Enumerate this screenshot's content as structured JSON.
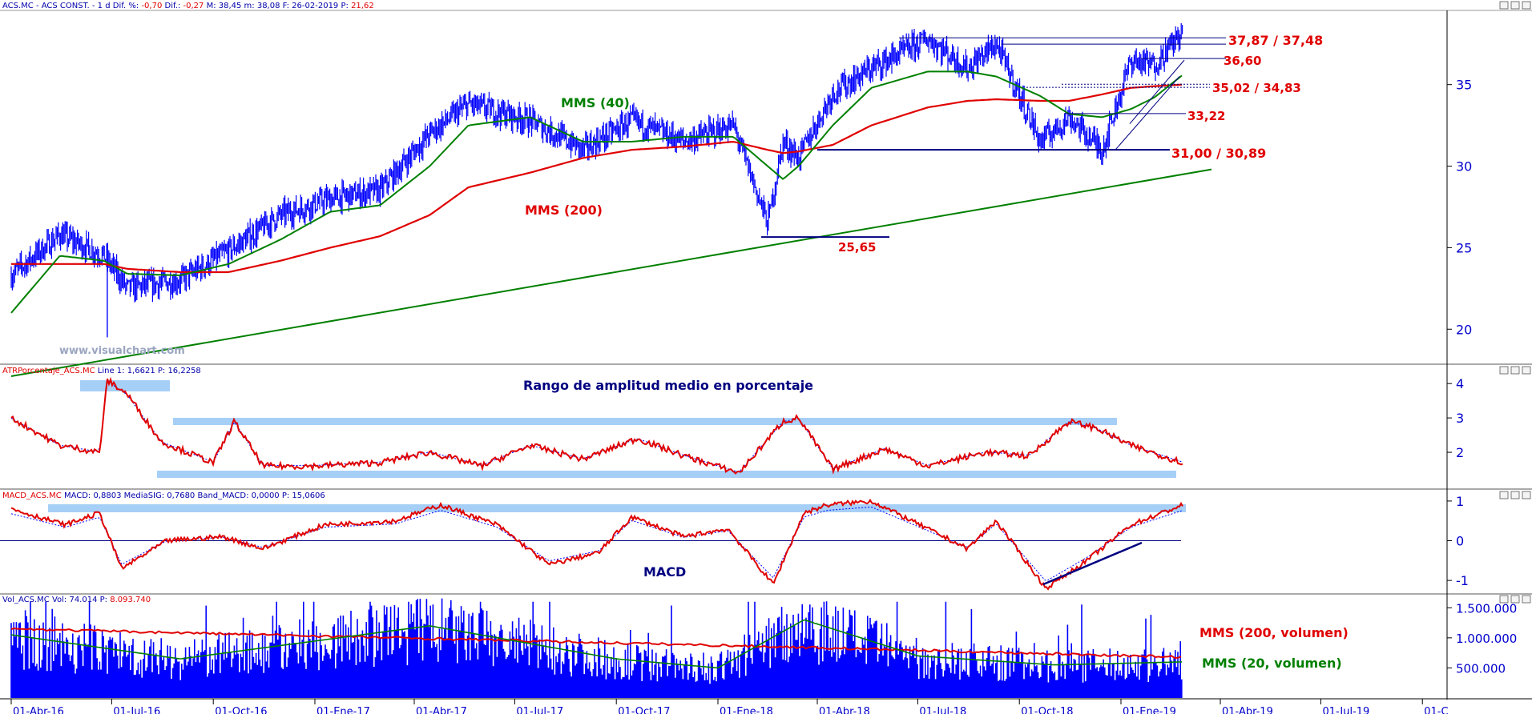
{
  "header": {
    "price": {
      "symbol": "ACS.MC - ACS CONST. -",
      "period": "1 d",
      "dif_pct_label": "Dif. %:",
      "dif_pct": "-0,70",
      "dif_label": "Dif.:",
      "dif": "-0,27",
      "max": "M: 38,45",
      "min": "m: 38,08",
      "date": "F: 26-02-2019",
      "p_label": "P:",
      "p": "21,62"
    },
    "atr": {
      "name": "ATRPorcentaje_ACS.MC",
      "line_label": "Line 1:",
      "line": "1,6621",
      "p_label": "P:",
      "p": "16,2258"
    },
    "macd": {
      "name": "MACD_ACS.MC",
      "macd_label": "MACD:",
      "macd": "0,8803",
      "sig_label": "MediaSIG:",
      "sig": "0,7680",
      "band_label": "Band_MACD:",
      "band": "0,0000",
      "p_label": "P:",
      "p": "15,0606"
    },
    "vol": {
      "name": "Vol_ACS.MC",
      "vol_label": "Vol:",
      "vol": "74.014",
      "p_label": "P:",
      "p": "8.093.740"
    }
  },
  "watermark": "www.visualchart.com",
  "annotations": {
    "mms40": "MMS (40)",
    "mms200": "MMS (200)",
    "r1": "37,87 / 37,48",
    "r2": "36,60",
    "r3": "35,02 / 34,83",
    "r4": "33,22",
    "r5": "31,00 / 30,89",
    "s1": "25,65",
    "atr_title": "Rango de amplitud medio en porcentaje",
    "macd_title": "MACD",
    "vol200": "MMS (200, volumen)",
    "vol20": "MMS (20, volumen)"
  },
  "colors": {
    "price": "#0000ff",
    "mms40": "#008000",
    "mms200": "#e00000",
    "annotation": "#e00000",
    "indicator": "#e00000",
    "highlight": "#a6cff7",
    "navy": "#000080",
    "axis": "#0000cc"
  },
  "chart_data": [
    {
      "type": "line",
      "title": "ACS.MC - ACS CONST.",
      "xlabel": "",
      "ylabel": "",
      "x": [
        "2016-04-01",
        "2016-05-15",
        "2016-06-24",
        "2016-07-15",
        "2016-09-01",
        "2016-10-15",
        "2016-12-01",
        "2017-01-15",
        "2017-03-01",
        "2017-04-15",
        "2017-05-20",
        "2017-07-15",
        "2017-09-01",
        "2017-10-15",
        "2017-12-01",
        "2018-01-15",
        "2018-02-15",
        "2018-03-01",
        "2018-03-15",
        "2018-04-15",
        "2018-05-20",
        "2018-07-10",
        "2018-08-15",
        "2018-09-10",
        "2018-10-20",
        "2018-11-15",
        "2018-12-15",
        "2019-01-10",
        "2019-01-31",
        "2019-02-26"
      ],
      "series": [
        {
          "name": "ACS.MC",
          "values": [
            23.3,
            25.8,
            24.5,
            22.5,
            23.0,
            24.8,
            27.0,
            28.0,
            28.5,
            32.0,
            33.8,
            32.8,
            31.0,
            32.8,
            31.5,
            32.5,
            26.5,
            31.5,
            30.5,
            34.5,
            36.0,
            37.8,
            36.0,
            37.5,
            31.5,
            33.0,
            31.0,
            36.5,
            36.2,
            38.3
          ]
        },
        {
          "name": "MMS (40)",
          "values": [
            21.0,
            24.5,
            24.2,
            23.4,
            23.3,
            24.0,
            25.5,
            27.2,
            27.6,
            30.0,
            32.5,
            33.0,
            31.5,
            31.5,
            31.8,
            31.8,
            30.0,
            29.2,
            30.0,
            32.5,
            34.8,
            35.8,
            35.8,
            35.5,
            34.3,
            33.2,
            33.0,
            33.5,
            34.2,
            35.6
          ]
        },
        {
          "name": "MMS (200)",
          "values": [
            24.0,
            24.0,
            24.0,
            23.7,
            23.5,
            23.5,
            24.2,
            25.0,
            25.7,
            27.0,
            28.7,
            29.6,
            30.5,
            31.0,
            31.2,
            31.5,
            31.0,
            30.8,
            30.9,
            31.3,
            32.5,
            33.6,
            34.0,
            34.1,
            34.0,
            34.0,
            34.4,
            34.8,
            34.9,
            35.0
          ]
        }
      ],
      "min_low": {
        "x": "2016-06-27",
        "y": 19.5
      },
      "ylim": [
        18.0,
        39.5
      ],
      "yticks": [
        "20",
        "25",
        "30",
        "35"
      ],
      "levels": [
        "37.87",
        "37.48",
        "36.60",
        "35.02",
        "34.83",
        "33.22",
        "31.00",
        "30.89",
        "25.65"
      ],
      "trendline": {
        "from": {
          "x": "2016-04-01",
          "y": 18.0
        },
        "to": {
          "x": "2019-02-26",
          "y": 29.8
        }
      }
    },
    {
      "type": "line",
      "title": "ATRPorcentaje_ACS.MC",
      "x": [
        "2016-04-01",
        "2016-05-15",
        "2016-06-20",
        "2016-06-27",
        "2016-07-15",
        "2016-08-15",
        "2016-10-01",
        "2016-10-20",
        "2016-11-15",
        "2017-01-01",
        "2017-03-01",
        "2017-04-15",
        "2017-06-01",
        "2017-07-15",
        "2017-09-01",
        "2017-10-20",
        "2017-12-01",
        "2018-01-20",
        "2018-03-01",
        "2018-03-15",
        "2018-04-15",
        "2018-06-01",
        "2018-07-10",
        "2018-09-01",
        "2018-10-10",
        "2018-11-15",
        "2018-12-10",
        "2019-01-10",
        "2019-02-26"
      ],
      "series": [
        {
          "name": "Line 1",
          "values": [
            3.0,
            2.2,
            2.0,
            4.1,
            3.7,
            2.3,
            1.7,
            2.9,
            1.6,
            1.6,
            1.7,
            2.0,
            1.6,
            2.2,
            1.8,
            2.4,
            1.9,
            1.4,
            2.9,
            3.0,
            1.5,
            2.1,
            1.6,
            2.0,
            1.9,
            2.9,
            2.7,
            2.2,
            1.7
          ]
        }
      ],
      "ylim": [
        1.0,
        4.4
      ],
      "yticks": [
        "2",
        "3",
        "4"
      ]
    },
    {
      "type": "line",
      "title": "MACD_ACS.MC",
      "x": [
        "2016-04-01",
        "2016-05-20",
        "2016-06-20",
        "2016-07-10",
        "2016-08-20",
        "2016-10-10",
        "2016-11-15",
        "2017-01-10",
        "2017-03-15",
        "2017-04-25",
        "2017-06-15",
        "2017-08-01",
        "2017-09-15",
        "2017-10-15",
        "2017-12-01",
        "2018-01-10",
        "2018-02-20",
        "2018-03-20",
        "2018-04-10",
        "2018-05-20",
        "2018-07-10",
        "2018-08-15",
        "2018-09-10",
        "2018-10-25",
        "2018-12-01",
        "2019-01-10",
        "2019-02-26"
      ],
      "series": [
        {
          "name": "MACD",
          "values": [
            0.8,
            0.4,
            0.7,
            -0.7,
            0.0,
            0.1,
            -0.2,
            0.4,
            0.5,
            0.9,
            0.4,
            -0.6,
            -0.3,
            0.6,
            0.1,
            0.3,
            -1.1,
            0.7,
            0.9,
            1.0,
            0.3,
            -0.2,
            0.5,
            -1.2,
            -0.5,
            0.4,
            0.9
          ]
        }
      ],
      "ylim": [
        -1.3,
        1.2
      ],
      "yticks": [
        "-1",
        "0",
        "1"
      ]
    },
    {
      "type": "bar",
      "title": "Vol_ACS.MC",
      "ylim": [
        0,
        1650000
      ],
      "yticks": [
        "500.000",
        "1.000.000",
        "1.500.000"
      ],
      "sma200": {
        "name": "MMS (200, volumen)",
        "x": [
          "2016-04-01",
          "2018-03-01",
          "2019-02-26"
        ],
        "values": [
          1150000,
          850000,
          680000
        ]
      },
      "sma20": {
        "name": "MMS (20, volumen)",
        "x": [
          "2016-04-01",
          "2016-09-01",
          "2017-04-15",
          "2017-10-01",
          "2018-01-01",
          "2018-03-20",
          "2018-07-01",
          "2018-11-01",
          "2019-02-26"
        ],
        "values": [
          1050000,
          650000,
          1200000,
          650000,
          500000,
          1300000,
          700000,
          550000,
          600000
        ]
      }
    }
  ],
  "xaxis": {
    "labels": [
      "01-Abr-16",
      "01-Jul-16",
      "01-Oct-16",
      "01-Ene-17",
      "01-Abr-17",
      "01-Jul-17",
      "01-Oct-17",
      "01-Ene-18",
      "01-Abr-18",
      "01-Jul-18",
      "01-Oct-18",
      "01-Ene-19",
      "01-Abr-19",
      "01-Jul-19",
      "01-C"
    ]
  }
}
